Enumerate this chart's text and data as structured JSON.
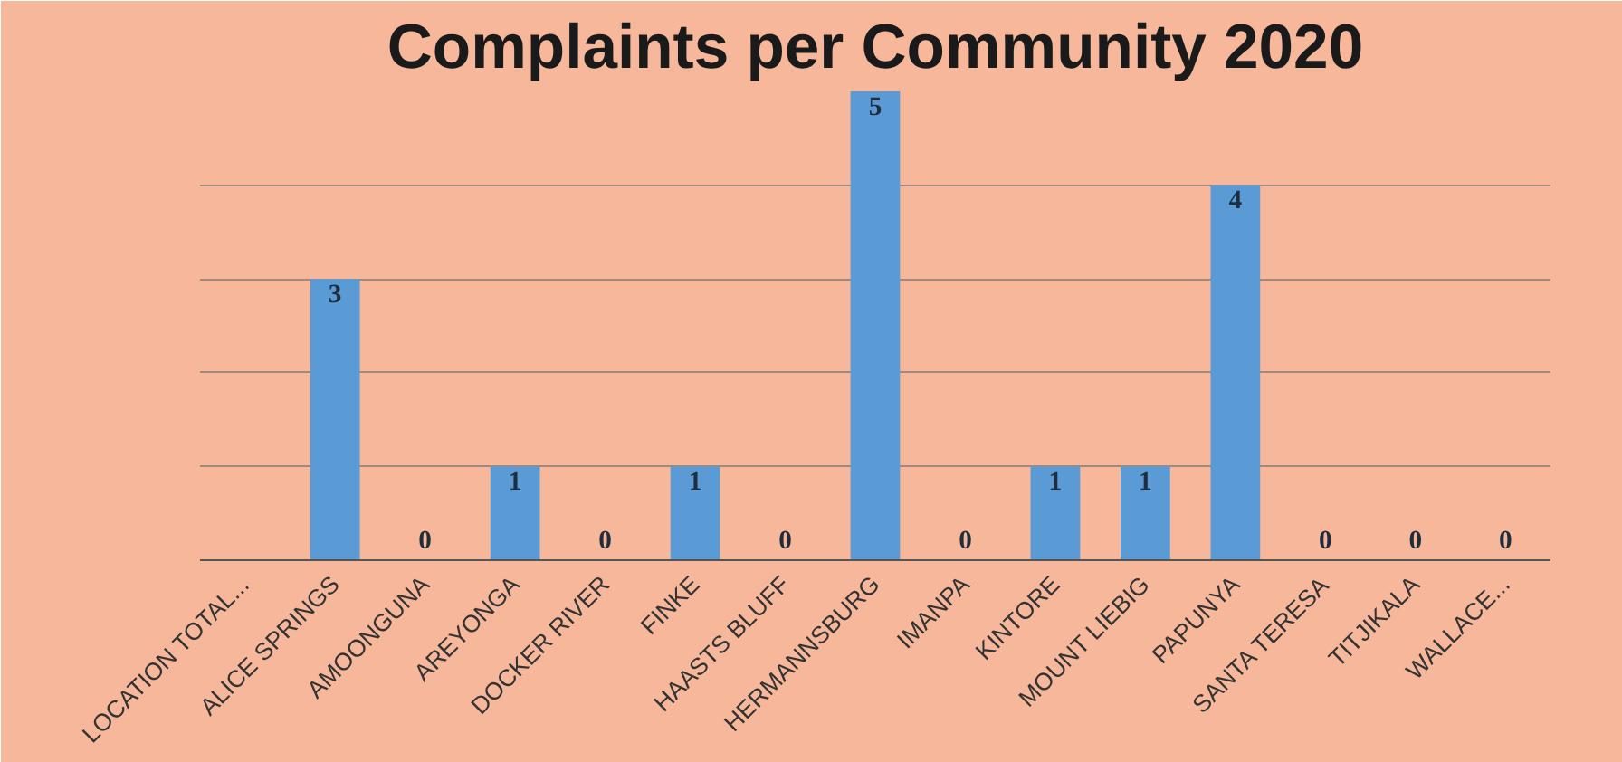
{
  "chart_data": {
    "type": "bar",
    "title": "Complaints per Community 2020",
    "categories": [
      "LOCATION TOTAL...",
      "ALICE SPRINGS",
      "AMOONGUNA",
      "AREYONGA",
      "DOCKER RIVER",
      "FINKE",
      "HAASTS BLUFF",
      "HERMANNSBURG",
      "IMANPA",
      "KINTORE",
      "MOUNT LIEBIG",
      "PAPUNYA",
      "SANTA TERESA",
      "TITJIKALA",
      "WALLACE..."
    ],
    "values": [
      null,
      3,
      0,
      1,
      0,
      1,
      0,
      5,
      0,
      1,
      1,
      4,
      0,
      0,
      0
    ],
    "color": "#5b9bd5",
    "ylim": [
      0,
      5
    ],
    "yticks": [
      {
        "value": 0,
        "label": null
      },
      {
        "value": 1,
        "label": null
      },
      {
        "value": 2,
        "label": null
      },
      {
        "value": 3,
        "label": null
      },
      {
        "value": 4,
        "label": null
      },
      {
        "value": 5,
        "label": null
      }
    ],
    "grid": "y",
    "tick_labels": "x",
    "data_labels": true
  }
}
